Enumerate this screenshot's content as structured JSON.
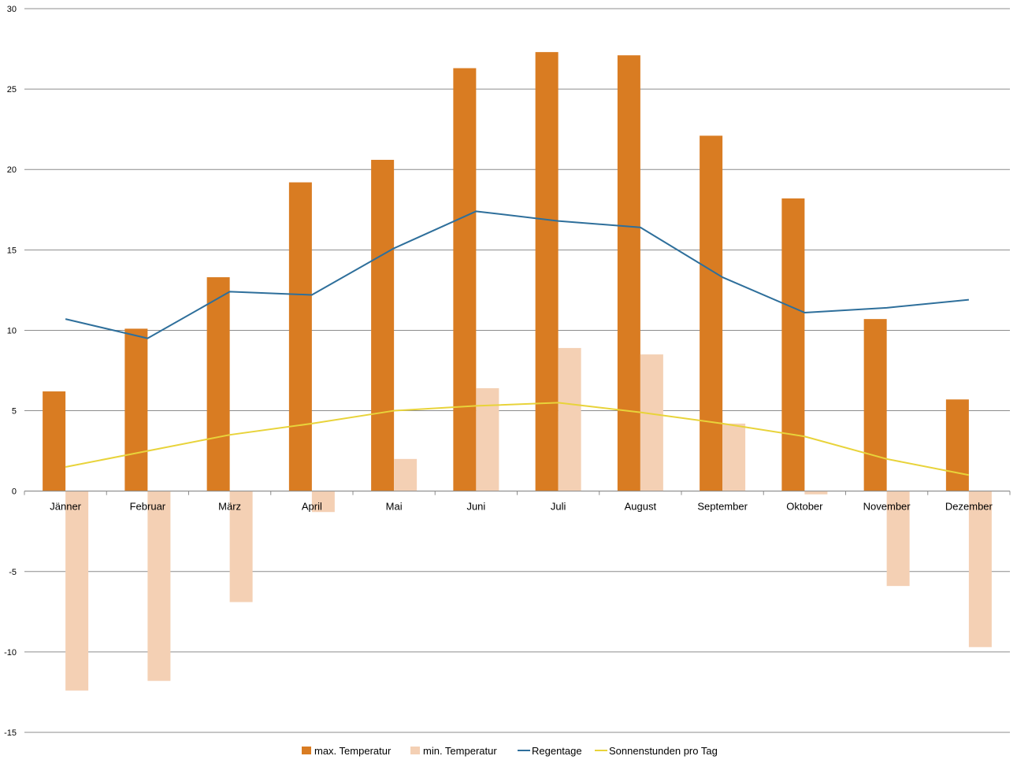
{
  "chart_data": {
    "type": "bar",
    "categories": [
      "Jänner",
      "Februar",
      "März",
      "April",
      "Mai",
      "Juni",
      "Juli",
      "August",
      "September",
      "Oktober",
      "November",
      "Dezember"
    ],
    "series": [
      {
        "name": "max. Temperatur",
        "kind": "bar",
        "color": "#d97c22",
        "values": [
          6.2,
          10.1,
          13.3,
          19.2,
          20.6,
          26.3,
          27.3,
          27.1,
          22.1,
          18.2,
          10.7,
          5.7
        ]
      },
      {
        "name": "min. Temperatur",
        "kind": "bar",
        "color": "#f4d0b4",
        "values": [
          -12.4,
          -11.8,
          -6.9,
          -1.3,
          2.0,
          6.4,
          8.9,
          8.5,
          4.2,
          -0.2,
          -5.9,
          -9.7
        ]
      },
      {
        "name": "Regentage",
        "kind": "line",
        "color": "#2e6f9b",
        "values": [
          10.7,
          9.5,
          12.4,
          12.2,
          15.1,
          17.4,
          16.8,
          16.4,
          13.3,
          11.1,
          11.4,
          11.9
        ]
      },
      {
        "name": "Sonnenstunden pro Tag",
        "kind": "line",
        "color": "#e8d33a",
        "values": [
          1.5,
          2.5,
          3.5,
          4.2,
          5.0,
          5.3,
          5.5,
          4.9,
          4.2,
          3.4,
          2.0,
          1.0
        ]
      }
    ],
    "ylim": [
      -15,
      30
    ],
    "yticks": [
      "-15",
      "-10",
      "-5",
      "0",
      "5",
      "10",
      "15",
      "20",
      "25",
      "30"
    ],
    "grid": true,
    "legend_position": "bottom"
  }
}
